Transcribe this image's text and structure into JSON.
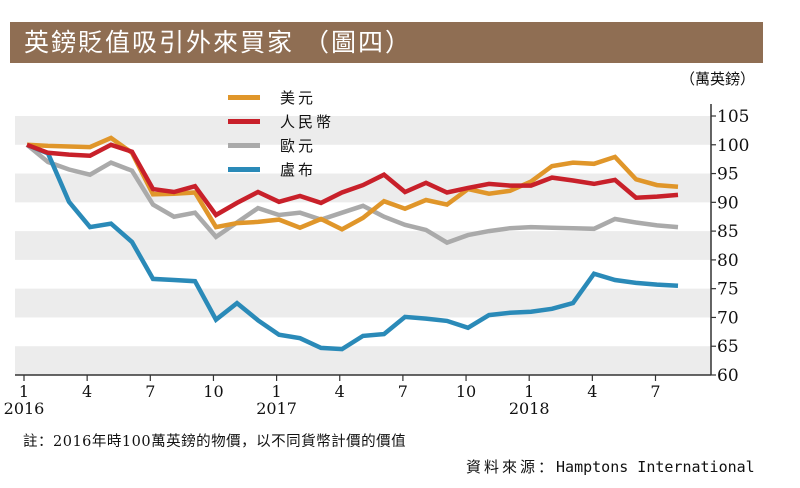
{
  "title": "英鎊貶值吸引外來買家 （圖四）",
  "unit_label": "（萬英鎊）",
  "note": "註：2016年時100萬英鎊的物價，以不同貨幣計價的價值",
  "source": {
    "label": "資料來源：",
    "value": "Hamptons International"
  },
  "chart_data": {
    "type": "line",
    "title": "英鎊貶值吸引外來買家 （圖四）",
    "xlabel": "",
    "ylabel": "（萬英鎊）",
    "ylim": [
      60,
      105
    ],
    "yticks": [
      "60",
      "65",
      "70",
      "75",
      "80",
      "85",
      "90",
      "95",
      "100",
      "105"
    ],
    "y_axis_side": "right",
    "grid": "alternating horizontal bands (100-105, 90-95, 80-85, 70-75, 60-65 shaded)",
    "legend_position": "top-left",
    "x_months": [
      "2016-01",
      "2016-02",
      "2016-03",
      "2016-04",
      "2016-05",
      "2016-06",
      "2016-07",
      "2016-08",
      "2016-09",
      "2016-10",
      "2016-11",
      "2016-12",
      "2017-01",
      "2017-02",
      "2017-03",
      "2017-04",
      "2017-05",
      "2017-06",
      "2017-07",
      "2017-08",
      "2017-09",
      "2017-10",
      "2017-11",
      "2017-12",
      "2018-01",
      "2018-02",
      "2018-03",
      "2018-04",
      "2018-05",
      "2018-06",
      "2018-07",
      "2018-08"
    ],
    "xticks": [
      {
        "month_index": 0,
        "label": "1",
        "year": "2016"
      },
      {
        "month_index": 3,
        "label": "4",
        "year": ""
      },
      {
        "month_index": 6,
        "label": "7",
        "year": ""
      },
      {
        "month_index": 9,
        "label": "10",
        "year": ""
      },
      {
        "month_index": 12,
        "label": "1",
        "year": "2017"
      },
      {
        "month_index": 15,
        "label": "4",
        "year": ""
      },
      {
        "month_index": 18,
        "label": "7",
        "year": ""
      },
      {
        "month_index": 21,
        "label": "10",
        "year": ""
      },
      {
        "month_index": 24,
        "label": "1",
        "year": "2018"
      },
      {
        "month_index": 27,
        "label": "4",
        "year": ""
      },
      {
        "month_index": 30,
        "label": "7",
        "year": ""
      }
    ],
    "series": [
      {
        "name": "美元",
        "color": "#e0962a",
        "values": [
          100,
          99.8,
          99.7,
          99.6,
          101.2,
          98.6,
          91.4,
          91.5,
          91.7,
          85.7,
          86.4,
          86.6,
          87.0,
          85.6,
          87.1,
          85.3,
          87.3,
          90.2,
          88.9,
          90.4,
          89.6,
          92.3,
          91.5,
          92.0,
          93.6,
          96.3,
          96.9,
          96.7,
          97.9,
          94.0,
          93.0,
          92.7
        ]
      },
      {
        "name": "人民幣",
        "color": "#c8202a",
        "values": [
          100,
          98.6,
          98.3,
          98.1,
          100.0,
          98.8,
          92.3,
          91.8,
          92.8,
          87.8,
          89.9,
          91.8,
          90.1,
          91.1,
          89.9,
          91.7,
          93.0,
          94.8,
          91.8,
          93.4,
          91.7,
          92.5,
          93.2,
          92.9,
          92.9,
          94.3,
          93.8,
          93.2,
          93.9,
          90.8,
          91.0,
          91.3
        ]
      },
      {
        "name": "歐元",
        "color": "#aaaaaa",
        "values": [
          100,
          97.0,
          95.7,
          94.8,
          96.9,
          95.5,
          89.6,
          87.5,
          88.2,
          84.0,
          86.5,
          89.0,
          87.8,
          88.2,
          87.0,
          88.2,
          89.4,
          87.5,
          86.1,
          85.2,
          83.0,
          84.3,
          85.0,
          85.5,
          85.7,
          85.6,
          85.5,
          85.4,
          87.1,
          86.5,
          86.0,
          85.7
        ]
      },
      {
        "name": "盧布",
        "color": "#2a8ab8",
        "values": [
          100,
          98.5,
          90.1,
          85.7,
          86.3,
          83.1,
          76.7,
          76.5,
          76.3,
          69.6,
          72.5,
          69.5,
          67.0,
          66.4,
          64.7,
          64.5,
          66.8,
          67.1,
          70.1,
          69.8,
          69.4,
          68.2,
          70.4,
          70.8,
          71.0,
          71.5,
          72.5,
          77.6,
          76.5,
          76.0,
          75.7,
          75.5
        ]
      }
    ]
  }
}
